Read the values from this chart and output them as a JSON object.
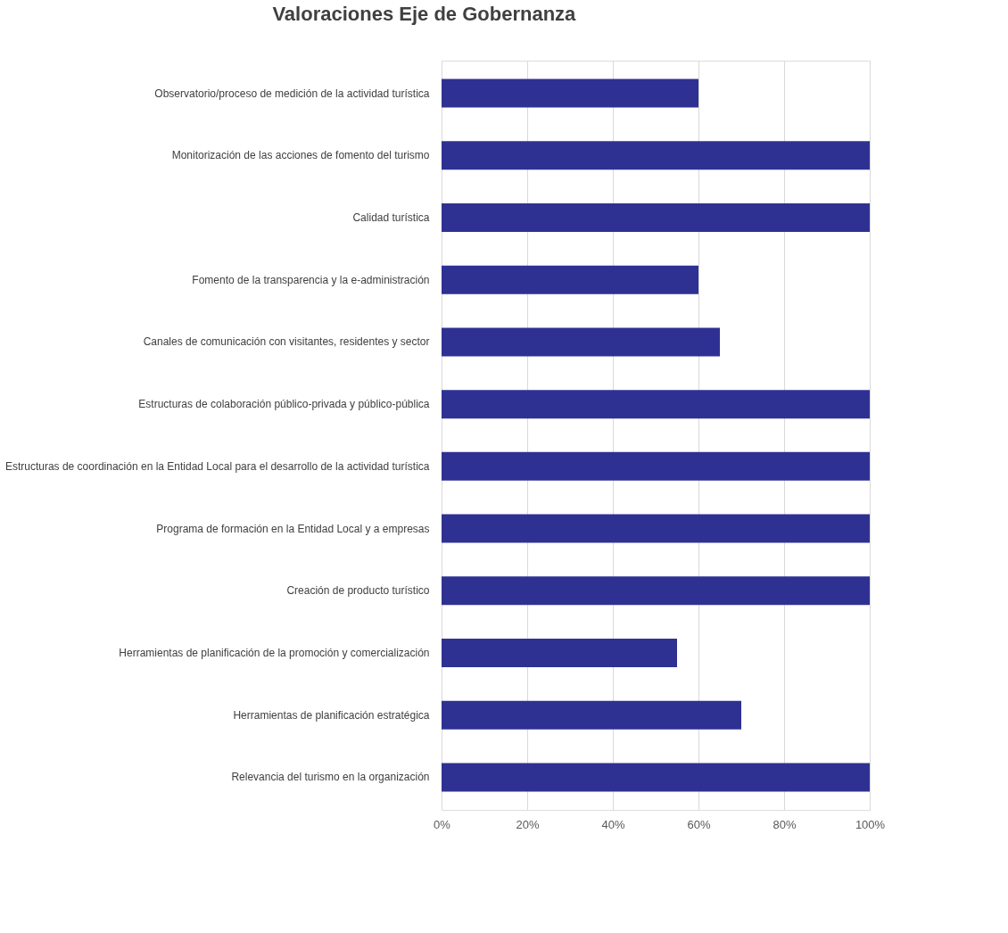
{
  "chart_data": {
    "type": "bar",
    "orientation": "horizontal",
    "title": "Valoraciones Eje de Gobernanza",
    "categories": [
      "Observatorio/proceso de medición de la actividad turística",
      "Monitorización de las acciones de fomento del turismo",
      "Calidad turística",
      "Fomento de la transparencia y la e-administración",
      "Canales de comunicación con visitantes, residentes y sector",
      "Estructuras de colaboración público-privada y público-pública",
      "Estructuras de coordinación en la Entidad Local para el desarrollo de la actividad turística",
      "Programa de formación en la Entidad Local y a empresas",
      "Creación de producto turístico",
      "Herramientas de planificación de la promoción y comercialización",
      "Herramientas de planificación estratégica",
      "Relevancia del turismo en la organización"
    ],
    "values": [
      60,
      100,
      100,
      60,
      65,
      100,
      100,
      100,
      100,
      55,
      70,
      100
    ],
    "color": "#2e3192",
    "xlim": [
      0,
      100
    ],
    "xticks": [
      {
        "value": 0,
        "label": "0%"
      },
      {
        "value": 20,
        "label": "20%"
      },
      {
        "value": 40,
        "label": "40%"
      },
      {
        "value": 60,
        "label": "60%"
      },
      {
        "value": 80,
        "label": "80%"
      },
      {
        "value": 100,
        "label": "100%"
      }
    ],
    "grid": "x"
  }
}
